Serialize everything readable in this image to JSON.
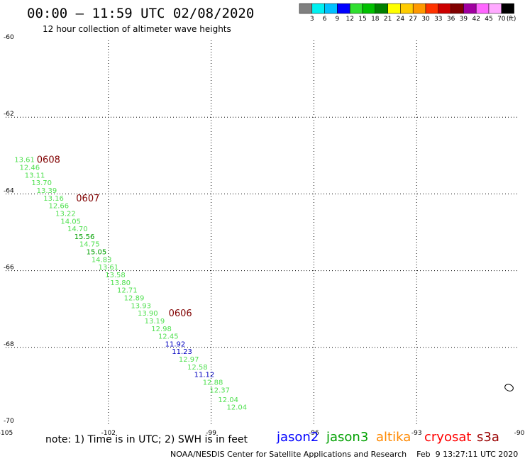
{
  "title": "00:00 – 11:59 UTC 02/08/2020",
  "subtitle": "12 hour collection of altimeter wave heights",
  "note": "note: 1) Time is in UTC; 2) SWH is in feet",
  "credit": "NOAA/NESDIS Center for Satellite Applications and Research    Feb  9 13:27:11 UTC 2020",
  "missions": [
    {
      "name": "jason2",
      "color": "#0000ff"
    },
    {
      "name": "jason3",
      "color": "#00a000"
    },
    {
      "name": "altika",
      "color": "#ff8800"
    },
    {
      "name": "cryosat",
      "color": "#ff0000"
    },
    {
      "name": "s3a",
      "color": "#990000"
    }
  ],
  "colorbar": {
    "unit": "(ft)",
    "ticks": [
      "3",
      "6",
      "9",
      "12",
      "15",
      "18",
      "21",
      "24",
      "27",
      "30",
      "33",
      "36",
      "39",
      "42",
      "45",
      "70"
    ],
    "colors": [
      "#808080",
      "#00f0f0",
      "#00c0ff",
      "#0000ff",
      "#30e030",
      "#00c000",
      "#008000",
      "#ffff00",
      "#ffcc00",
      "#ff9900",
      "#ff3300",
      "#cc0000",
      "#800000",
      "#a000a0",
      "#ff66ff",
      "#ffaaff",
      "#000000"
    ]
  },
  "chart_data": {
    "type": "scatter",
    "xlabel": "",
    "ylabel": "",
    "xlim": [
      -105,
      -90
    ],
    "ylim": [
      -70,
      -60
    ],
    "xticks": [
      "-105",
      "-102",
      "-99",
      "-96",
      "-93",
      "-90"
    ],
    "yticks": [
      "-60",
      "-62",
      "-64",
      "-66",
      "-68",
      "-70"
    ],
    "grid": true,
    "points": [
      {
        "lon": -104.45,
        "lat": -63.1,
        "swh": "13.61",
        "color": "#50e050"
      },
      {
        "lon": -104.3,
        "lat": -63.3,
        "swh": "12.46",
        "color": "#50e050"
      },
      {
        "lon": -104.15,
        "lat": -63.5,
        "swh": "13.11",
        "color": "#50e050"
      },
      {
        "lon": -103.95,
        "lat": -63.7,
        "swh": "13.70",
        "color": "#50e050"
      },
      {
        "lon": -103.8,
        "lat": -63.9,
        "swh": "13.39",
        "color": "#50e050"
      },
      {
        "lon": -103.6,
        "lat": -64.1,
        "swh": "13.16",
        "color": "#50e050"
      },
      {
        "lon": -103.45,
        "lat": -64.3,
        "swh": "12.66",
        "color": "#50e050"
      },
      {
        "lon": -103.25,
        "lat": -64.5,
        "swh": "13.22",
        "color": "#50e050"
      },
      {
        "lon": -103.1,
        "lat": -64.7,
        "swh": "14.05",
        "color": "#50e050"
      },
      {
        "lon": -102.9,
        "lat": -64.9,
        "swh": "14.70",
        "color": "#50e050"
      },
      {
        "lon": -102.7,
        "lat": -65.1,
        "swh": "15.56",
        "color": "#00a000"
      },
      {
        "lon": -102.55,
        "lat": -65.3,
        "swh": "14.75",
        "color": "#50e050"
      },
      {
        "lon": -102.35,
        "lat": -65.5,
        "swh": "15.05",
        "color": "#00a000"
      },
      {
        "lon": -102.2,
        "lat": -65.7,
        "swh": "14.83",
        "color": "#50e050"
      },
      {
        "lon": -102.0,
        "lat": -65.9,
        "swh": "13.61",
        "color": "#50e050"
      },
      {
        "lon": -101.8,
        "lat": -66.1,
        "swh": "13.58",
        "color": "#50e050"
      },
      {
        "lon": -101.65,
        "lat": -66.3,
        "swh": "13.80",
        "color": "#50e050"
      },
      {
        "lon": -101.45,
        "lat": -66.5,
        "swh": "12.71",
        "color": "#50e050"
      },
      {
        "lon": -101.25,
        "lat": -66.7,
        "swh": "12.89",
        "color": "#50e050"
      },
      {
        "lon": -101.05,
        "lat": -66.9,
        "swh": "13.93",
        "color": "#50e050"
      },
      {
        "lon": -100.85,
        "lat": -67.1,
        "swh": "13.90",
        "color": "#50e050"
      },
      {
        "lon": -100.65,
        "lat": -67.3,
        "swh": "13.19",
        "color": "#50e050"
      },
      {
        "lon": -100.45,
        "lat": -67.5,
        "swh": "12.98",
        "color": "#50e050"
      },
      {
        "lon": -100.25,
        "lat": -67.7,
        "swh": "12.45",
        "color": "#50e050"
      },
      {
        "lon": -100.05,
        "lat": -67.9,
        "swh": "11.92",
        "color": "#0000c0"
      },
      {
        "lon": -99.85,
        "lat": -68.1,
        "swh": "11.23",
        "color": "#0000c0"
      },
      {
        "lon": -99.65,
        "lat": -68.3,
        "swh": "12.97",
        "color": "#50e050"
      },
      {
        "lon": -99.4,
        "lat": -68.5,
        "swh": "12.58",
        "color": "#50e050"
      },
      {
        "lon": -99.2,
        "lat": -68.7,
        "swh": "11.12",
        "color": "#0000c0"
      },
      {
        "lon": -98.95,
        "lat": -68.9,
        "swh": "12.88",
        "color": "#50e050"
      },
      {
        "lon": -98.75,
        "lat": -69.1,
        "swh": "12.37",
        "color": "#50e050"
      },
      {
        "lon": -98.5,
        "lat": -69.35,
        "swh": "12.04",
        "color": "#50e050"
      },
      {
        "lon": -98.25,
        "lat": -69.55,
        "swh": "12.04",
        "color": "#50e050"
      }
    ],
    "time_labels": [
      {
        "lon": -103.75,
        "lat": -63.1,
        "text": "0608"
      },
      {
        "lon": -102.6,
        "lat": -64.1,
        "text": "0607"
      },
      {
        "lon": -99.9,
        "lat": -67.1,
        "text": "0606"
      }
    ],
    "time_label_color": "#800000",
    "island": {
      "lon": -90.3,
      "lat": -69.05
    }
  }
}
